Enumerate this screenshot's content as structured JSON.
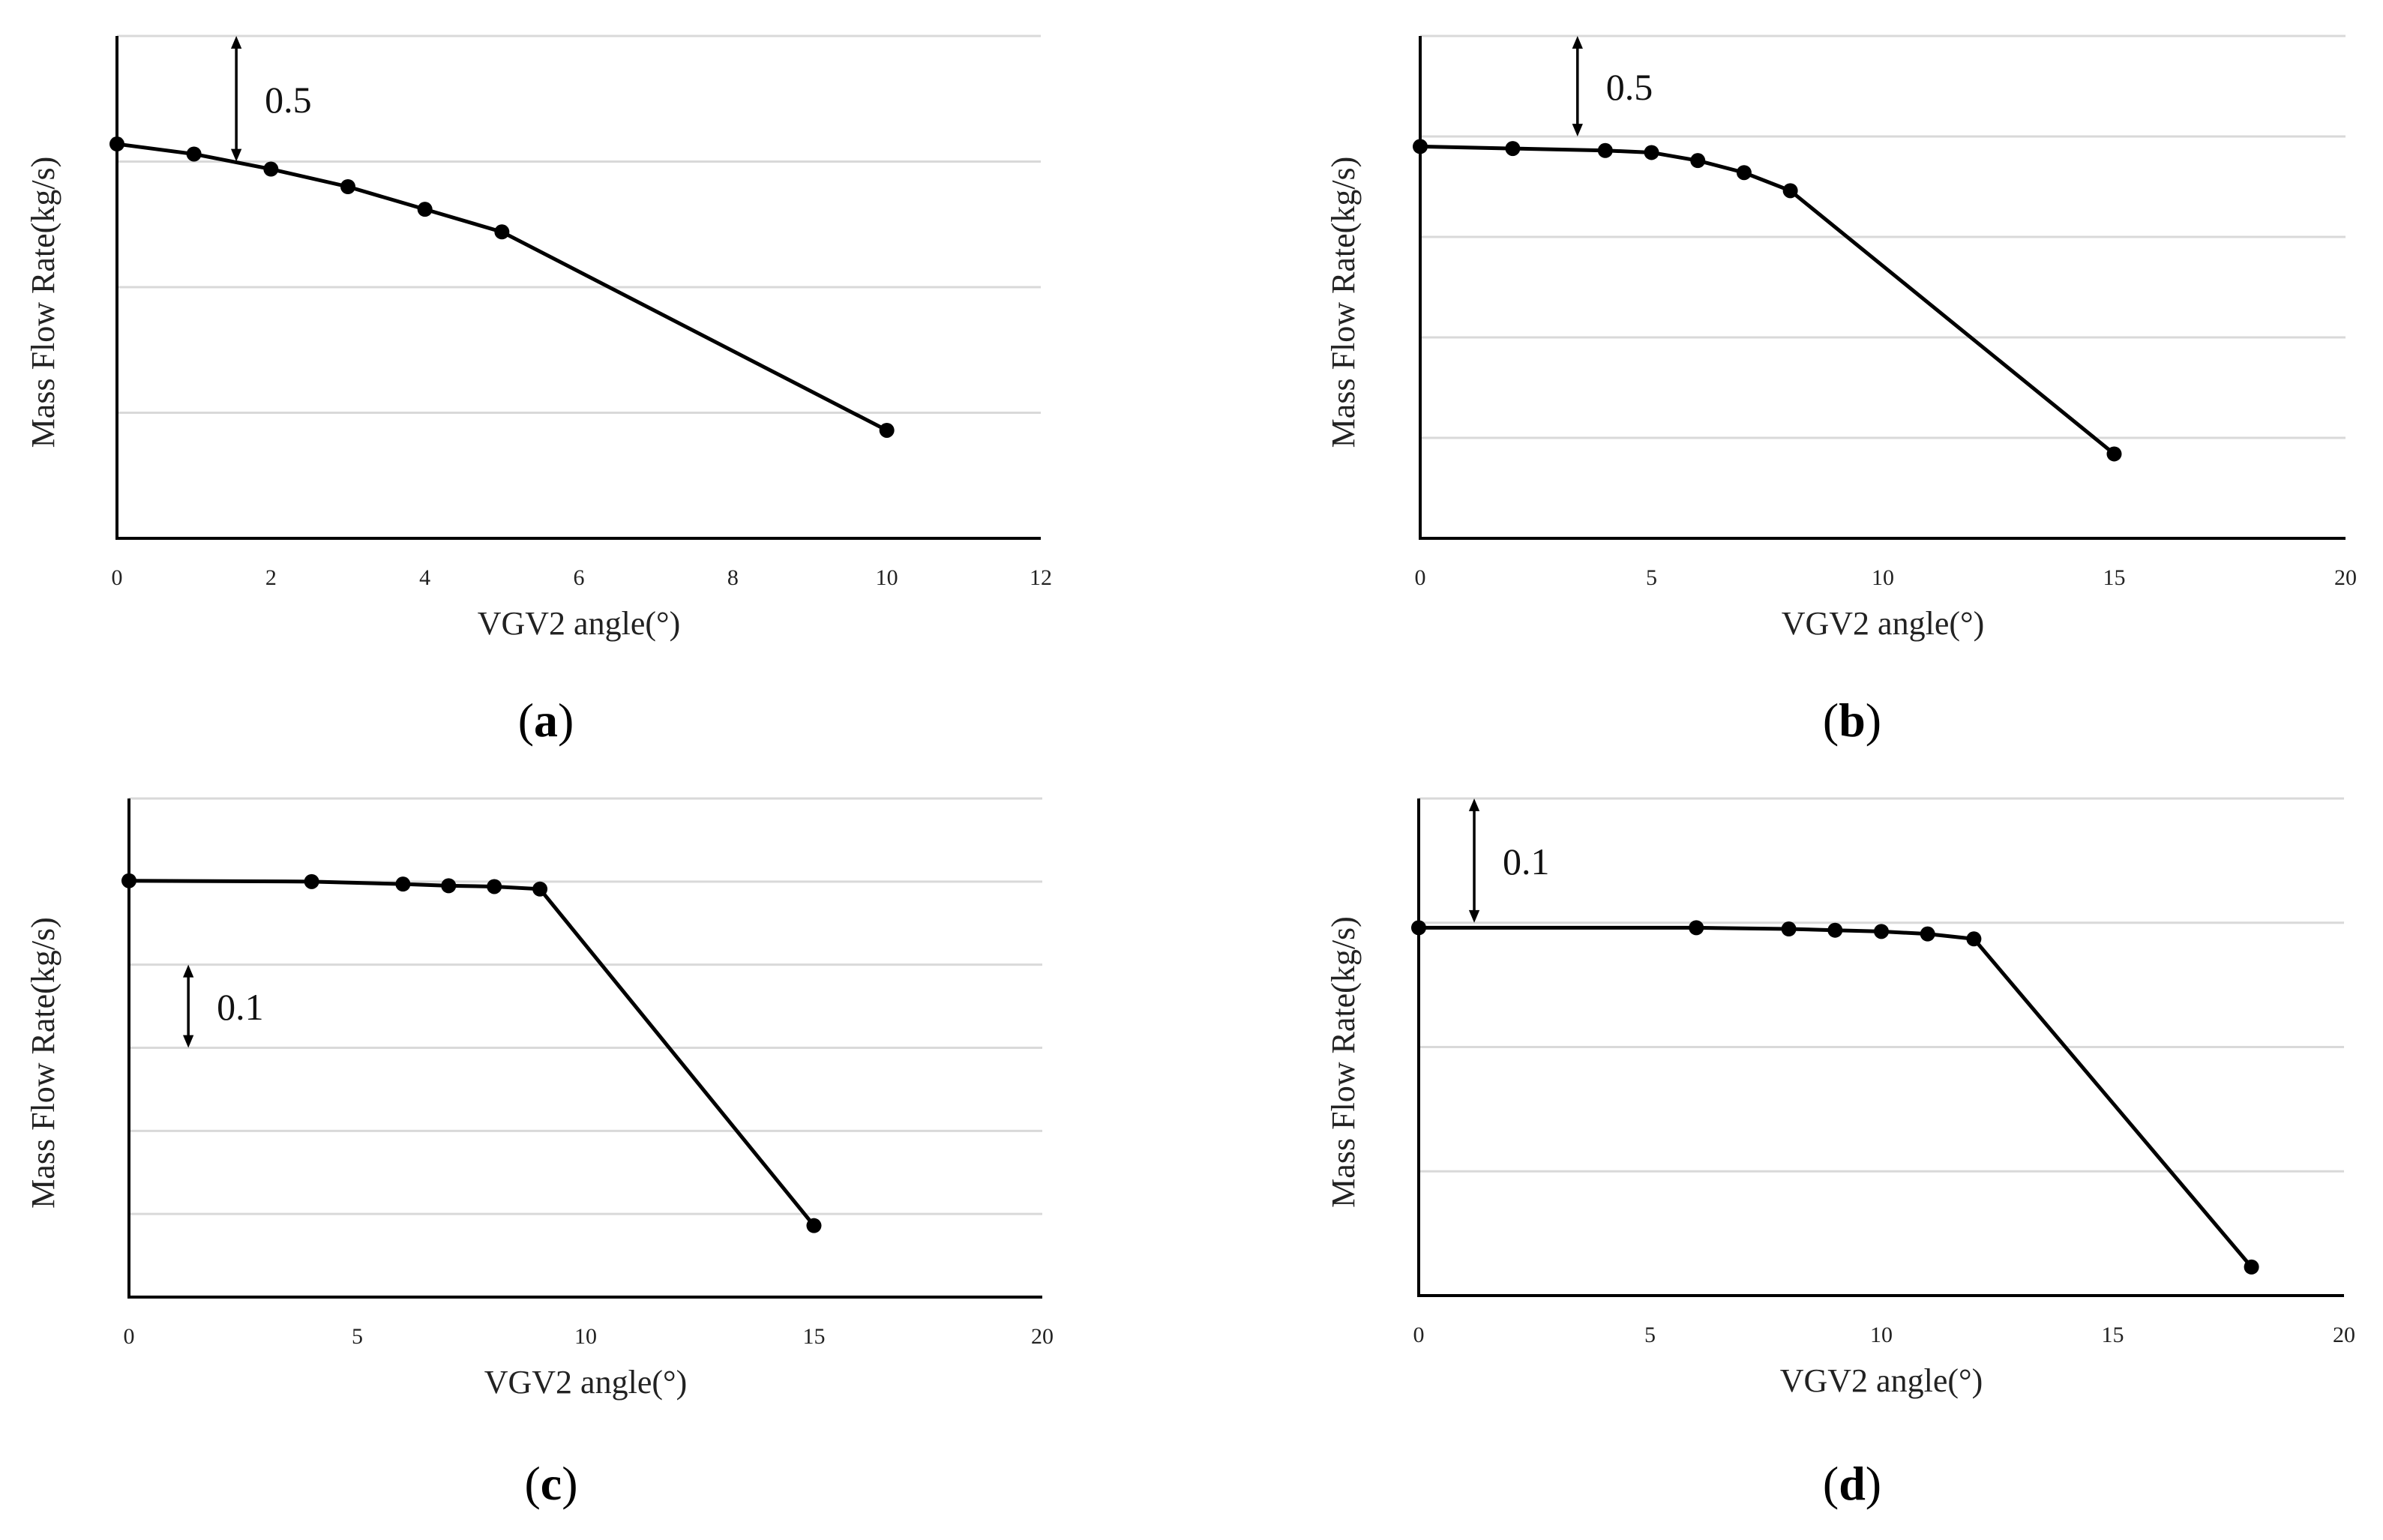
{
  "chart_data": [
    {
      "type": "line",
      "panel_label": "a",
      "title": "",
      "xlabel": "VGV2 angle(°)",
      "ylabel": "Mass Flow Rate(kg/s)",
      "xlim": [
        0,
        12
      ],
      "x_ticks": [
        0,
        2,
        4,
        6,
        8,
        10,
        12
      ],
      "ylim": [
        0,
        2.0
      ],
      "y_gridlines": [
        0.5,
        1.0,
        1.5,
        2.0
      ],
      "y_tick_labels_shown": false,
      "grid": true,
      "legend": "none",
      "series": [
        {
          "name": "VGV2",
          "x": [
            0,
            1,
            2,
            3,
            4,
            5,
            10
          ],
          "y": [
            1.57,
            1.53,
            1.47,
            1.4,
            1.31,
            1.22,
            0.43
          ]
        }
      ],
      "annotations": [
        {
          "text": "0.5",
          "type": "scale-arrow",
          "x": 1.55,
          "y_from": 1.5,
          "y_to": 2.0,
          "label_side": "right"
        }
      ]
    },
    {
      "type": "line",
      "panel_label": "b",
      "title": "",
      "xlabel": "VGV2 angle(°)",
      "ylabel": "Mass Flow Rate(kg/s)",
      "xlim": [
        0,
        20
      ],
      "x_ticks": [
        0,
        5,
        10,
        15,
        20
      ],
      "ylim": [
        0,
        2.5
      ],
      "y_gridlines": [
        0.5,
        1.0,
        1.5,
        2.0,
        2.5
      ],
      "y_tick_labels_shown": false,
      "grid": true,
      "legend": "none",
      "series": [
        {
          "name": "VGV2",
          "x": [
            0,
            2,
            4,
            5,
            6,
            7,
            8,
            15
          ],
          "y": [
            1.95,
            1.94,
            1.93,
            1.92,
            1.88,
            1.82,
            1.73,
            0.42
          ]
        }
      ],
      "annotations": [
        {
          "text": "0.5",
          "type": "scale-arrow",
          "x": 3.4,
          "y_from": 2.0,
          "y_to": 2.5,
          "label_side": "right"
        }
      ]
    },
    {
      "type": "line",
      "panel_label": "c",
      "title": "",
      "xlabel": "VGV2 angle(°)",
      "ylabel": "Mass Flow Rate(kg/s)",
      "xlim": [
        0,
        20
      ],
      "x_ticks": [
        0,
        5,
        10,
        15,
        20
      ],
      "ylim": [
        0,
        0.6
      ],
      "y_gridlines": [
        0.1,
        0.2,
        0.3,
        0.4,
        0.5,
        0.6
      ],
      "y_tick_labels_shown": false,
      "grid": true,
      "legend": "none",
      "series": [
        {
          "name": "VGV2",
          "x": [
            0,
            4,
            6,
            7,
            8,
            9,
            15
          ],
          "y": [
            0.501,
            0.5,
            0.497,
            0.495,
            0.494,
            0.491,
            0.086
          ]
        }
      ],
      "annotations": [
        {
          "text": "0.1",
          "type": "scale-arrow",
          "x": 1.3,
          "y_from": 0.3,
          "y_to": 0.4,
          "label_side": "right"
        }
      ]
    },
    {
      "type": "line",
      "panel_label": "d",
      "title": "",
      "xlabel": "VGV2 angle(°)",
      "ylabel": "Mass Flow Rate(kg/s)",
      "xlim": [
        0,
        20
      ],
      "x_ticks": [
        0,
        5,
        10,
        15,
        20
      ],
      "ylim": [
        0,
        0.4
      ],
      "y_gridlines": [
        0.1,
        0.2,
        0.3,
        0.4
      ],
      "y_tick_labels_shown": false,
      "grid": true,
      "legend": "none",
      "series": [
        {
          "name": "VGV2",
          "x": [
            0,
            6,
            8,
            9,
            10,
            11,
            12,
            18
          ],
          "y": [
            0.296,
            0.296,
            0.295,
            0.294,
            0.293,
            0.291,
            0.287,
            0.023
          ]
        }
      ],
      "annotations": [
        {
          "text": "0.1",
          "type": "scale-arrow",
          "x": 1.2,
          "y_from": 0.3,
          "y_to": 0.4,
          "label_side": "right"
        }
      ]
    }
  ]
}
